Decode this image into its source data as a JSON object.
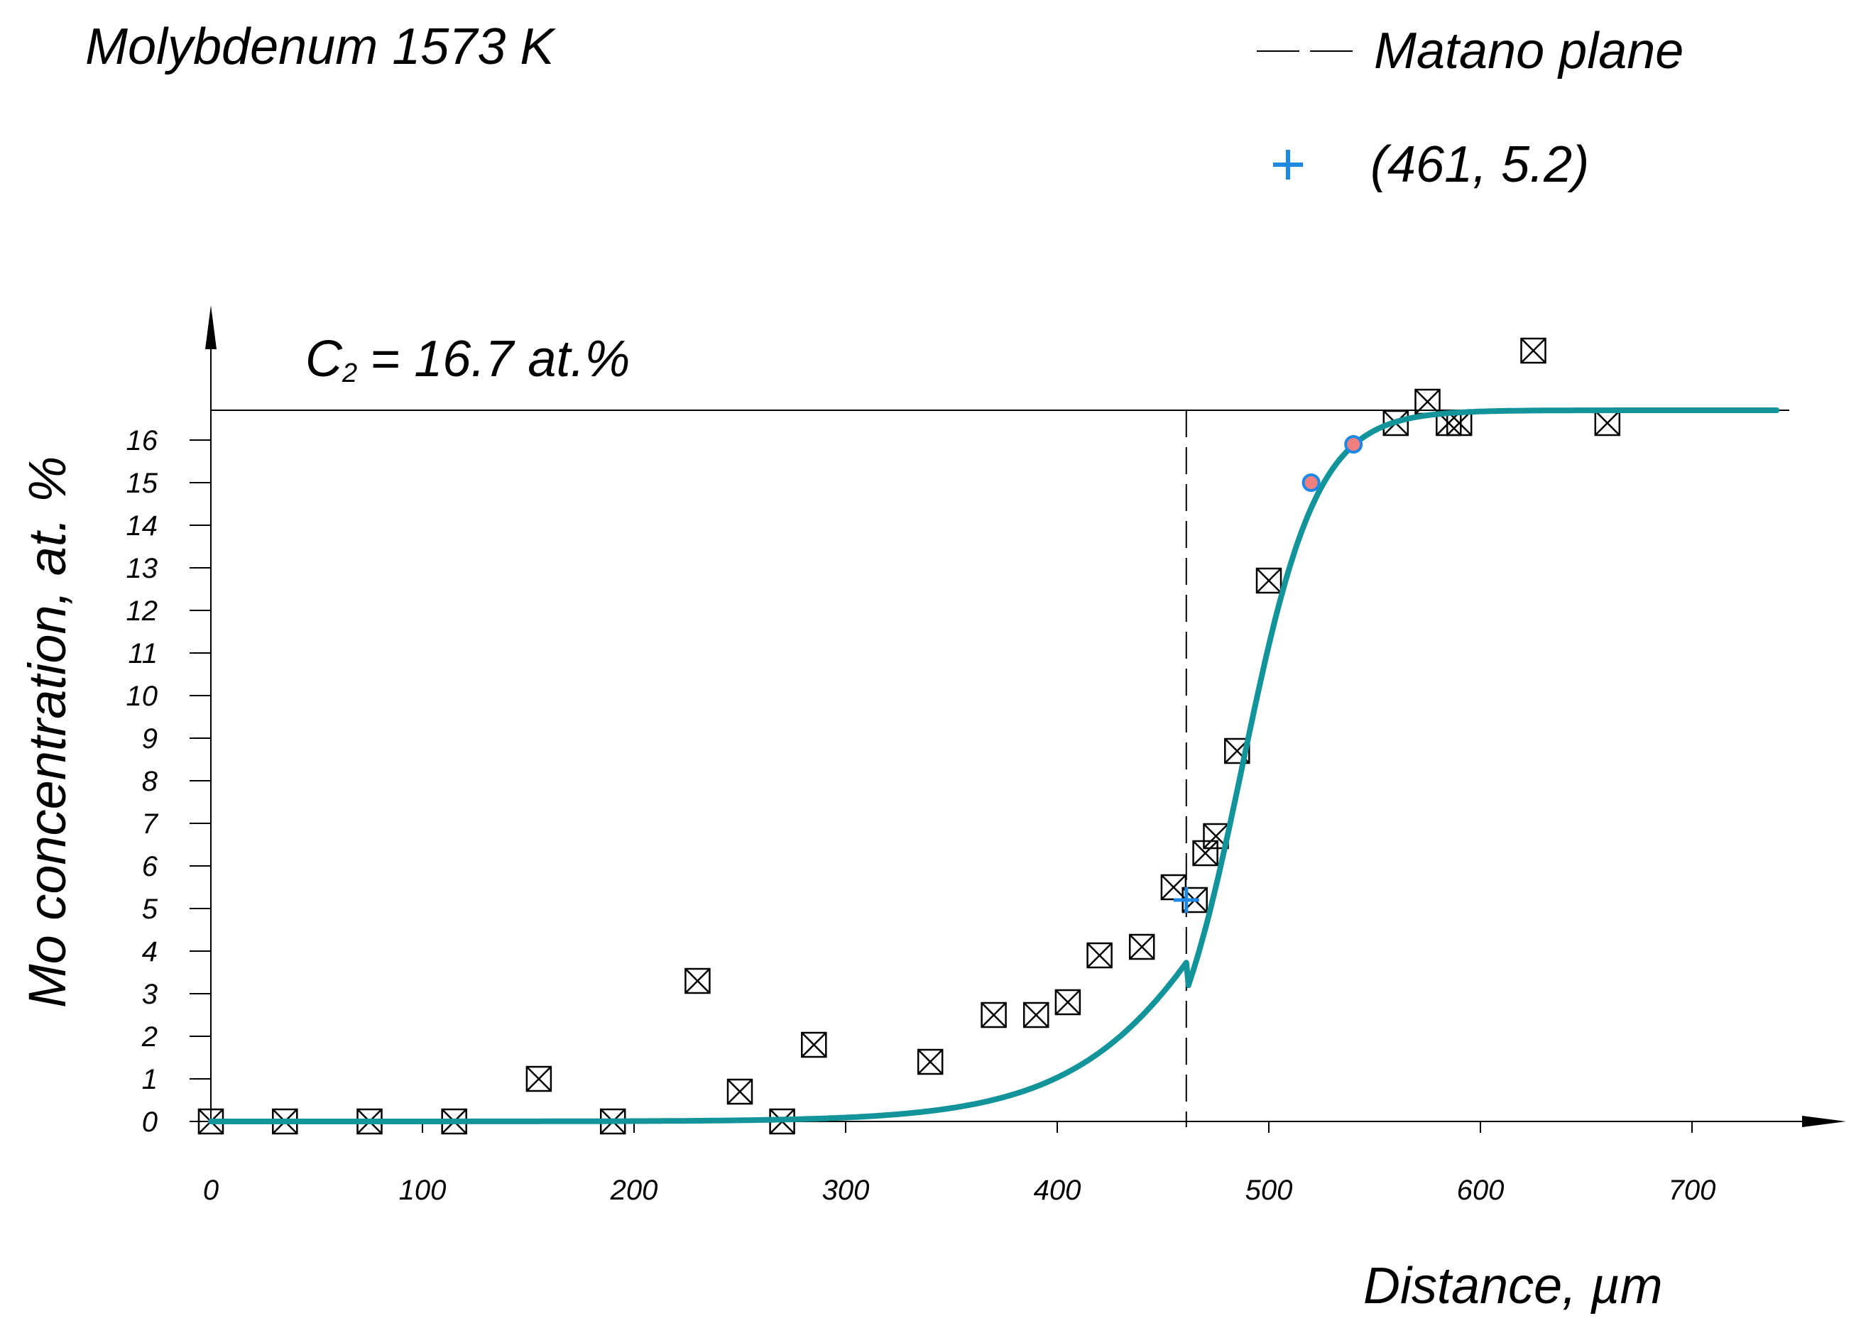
{
  "chart_data": {
    "type": "scatter",
    "title": "Molybdenum 1573 K",
    "xlabel": "Distance, µm",
    "ylabel": "Mo concentration, at. %",
    "xlim": [
      0,
      750
    ],
    "ylim": [
      0,
      16.7
    ],
    "x_ticks": [
      0,
      100,
      200,
      300,
      400,
      500,
      600,
      700
    ],
    "y_ticks": [
      0,
      1,
      2,
      3,
      4,
      5,
      6,
      7,
      8,
      9,
      10,
      11,
      12,
      13,
      14,
      15,
      16
    ],
    "grid": false,
    "c2": {
      "label_main": "C",
      "label_sub": "2",
      "label_rest": "= 16.7 at.%",
      "value": 16.7
    },
    "matano": {
      "label": "Matano plane",
      "x": 461
    },
    "matano_point": {
      "label": "(461, 5.2)",
      "x": 461,
      "y": 5.2
    },
    "measured": [
      [
        0,
        0
      ],
      [
        35,
        0
      ],
      [
        75,
        0
      ],
      [
        115,
        0
      ],
      [
        155,
        1.0
      ],
      [
        190,
        0
      ],
      [
        230,
        3.3
      ],
      [
        250,
        0.7
      ],
      [
        270,
        0
      ],
      [
        285,
        1.8
      ],
      [
        340,
        1.4
      ],
      [
        370,
        2.5
      ],
      [
        390,
        2.5
      ],
      [
        405,
        2.8
      ],
      [
        420,
        3.9
      ],
      [
        440,
        4.1
      ],
      [
        455,
        5.5
      ],
      [
        465,
        5.2
      ],
      [
        470,
        6.3
      ],
      [
        475,
        6.7
      ],
      [
        485,
        8.7
      ],
      [
        500,
        12.7
      ],
      [
        560,
        16.4
      ],
      [
        575,
        16.9
      ],
      [
        585,
        16.4
      ],
      [
        590,
        16.4
      ],
      [
        625,
        18.1
      ],
      [
        660,
        16.4
      ]
    ],
    "highlight_points": [
      [
        520,
        15.0
      ],
      [
        540,
        15.9
      ]
    ],
    "fit_curve": {
      "plateau": 16.7,
      "x_start": 0,
      "x_end": 740
    },
    "colors": {
      "curve": "#13939A",
      "matano_point": "#1E88E5",
      "highlight_fill": "#F08080",
      "highlight_stroke": "#1E88E5",
      "marker": "#000000"
    }
  }
}
